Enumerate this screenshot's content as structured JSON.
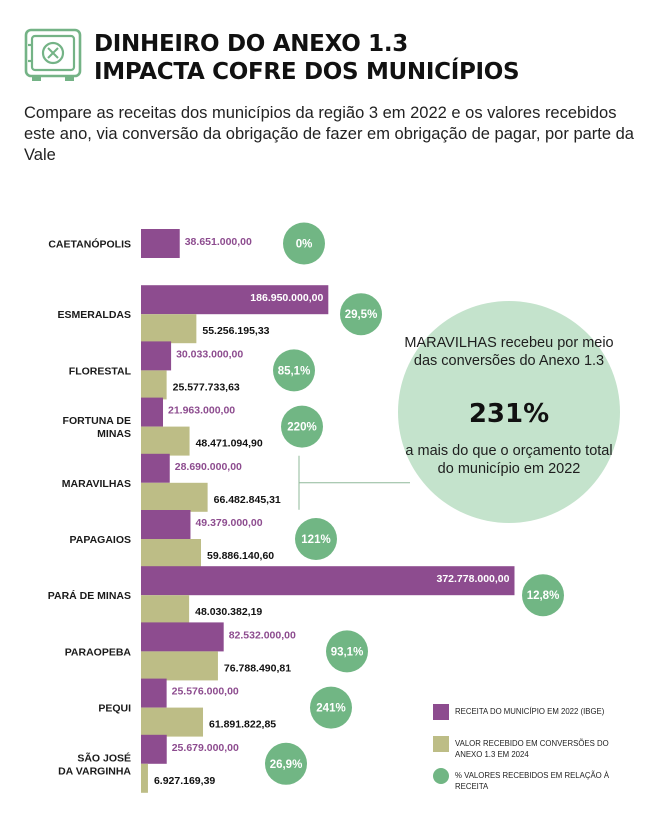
{
  "header": {
    "title_line1": "DINHEIRO DO ANEXO 1.3",
    "title_line2": "IMPACTA COFRE DOS MUNICÍPIOS",
    "subtitle": "Compare as receitas dos municípios da região 3 em 2022 e os valores recebidos este ano, via conversão da obrigação de fazer em obrigação de pagar, por parte da Vale"
  },
  "icon": "safe-icon",
  "colors": {
    "receita": "#8d4c8f",
    "valor": "#bdbd86",
    "percent": "#71b684",
    "callout_bg": "#c4e3cc",
    "icon_green": "#74b386"
  },
  "callout": {
    "top": "MARAVILHAS recebeu por meio das conversões do Anexo 1.3",
    "big": "231%",
    "bottom": "a mais do que o orçamento total do município em 2022"
  },
  "legend": [
    {
      "key": "receita",
      "label": "RECEITA DO MUNICÍPIO EM 2022 (IBGE)"
    },
    {
      "key": "valor",
      "label": "VALOR RECEBIDO EM CONVERSÕES DO ANEXO 1.3 EM 2024"
    },
    {
      "key": "percent",
      "label": "% VALORES RECEBIDOS EM RELAÇÃO À RECEITA"
    }
  ],
  "chart_data": {
    "type": "bar",
    "orientation": "horizontal",
    "categories": [
      "CAETANÓPOLIS",
      "ESMERALDAS",
      "FLORESTAL",
      "FORTUNA DE MINAS",
      "MARAVILHAS",
      "PAPAGAIOS",
      "PARÁ DE MINAS",
      "PARAOPEBA",
      "PEQUI",
      "SÃO JOSÉ DA VARGINHA"
    ],
    "series": [
      {
        "name": "RECEITA DO MUNICÍPIO EM 2022 (IBGE)",
        "key": "receita",
        "values": [
          38651000.0,
          186950000.0,
          30033000.0,
          21963000.0,
          28690000.0,
          49379000.0,
          372778000.0,
          82532000.0,
          25576000.0,
          25679000.0
        ],
        "labels": [
          "38.651.000,00",
          "186.950.000,00",
          "30.033.000,00",
          "21.963.000,00",
          "28.690.000,00",
          "49.379.000,00",
          "372.778.000,00",
          "82.532.000,00",
          "25.576.000,00",
          "25.679.000,00"
        ]
      },
      {
        "name": "VALOR RECEBIDO EM CONVERSÕES DO ANEXO 1.3 EM 2024",
        "key": "valor",
        "values": [
          null,
          55256195.33,
          25577733.63,
          48471094.9,
          66482845.31,
          59886140.6,
          48030382.19,
          76788490.81,
          61891822.85,
          6927169.39
        ],
        "labels": [
          "",
          "55.256.195,33",
          "25.577.733,63",
          "48.471.094,90",
          "66.482.845,31",
          "59.886.140,60",
          "48.030.382,19",
          "76.788.490,81",
          "61.891.822,85",
          "6.927.169,39"
        ]
      },
      {
        "name": "% VALORES RECEBIDOS EM RELAÇÃO À RECEITA",
        "key": "percent",
        "values": [
          0,
          29.5,
          85.1,
          220,
          231,
          121,
          12.8,
          93.1,
          241,
          26.9
        ],
        "labels": [
          "0%",
          "29,5%",
          "85,1%",
          "220%",
          "",
          "121%",
          "12,8%",
          "93,1%",
          "241%",
          "26,9%"
        ]
      }
    ]
  }
}
